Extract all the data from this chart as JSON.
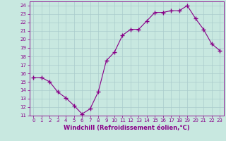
{
  "x": [
    0,
    1,
    2,
    3,
    4,
    5,
    6,
    7,
    8,
    9,
    10,
    11,
    12,
    13,
    14,
    15,
    16,
    17,
    18,
    19,
    20,
    21,
    22,
    23
  ],
  "y": [
    15.5,
    15.5,
    15.0,
    13.8,
    13.1,
    12.2,
    11.2,
    11.8,
    13.8,
    17.5,
    18.5,
    20.5,
    21.2,
    21.2,
    22.2,
    23.2,
    23.2,
    23.4,
    23.4,
    24.0,
    22.5,
    21.2,
    19.5,
    18.7
  ],
  "line_color": "#880088",
  "marker": "+",
  "marker_size": 4,
  "bg_color": "#c8e8e0",
  "grid_color": "#aacccc",
  "xlabel": "Windchill (Refroidissement éolien,°C)",
  "xlim": [
    -0.5,
    23.5
  ],
  "ylim": [
    11,
    24.5
  ],
  "yticks": [
    11,
    12,
    13,
    14,
    15,
    16,
    17,
    18,
    19,
    20,
    21,
    22,
    23,
    24
  ],
  "xticks": [
    0,
    1,
    2,
    3,
    4,
    5,
    6,
    7,
    8,
    9,
    10,
    11,
    12,
    13,
    14,
    15,
    16,
    17,
    18,
    19,
    20,
    21,
    22,
    23
  ],
  "tick_color": "#880088",
  "label_color": "#880088",
  "axis_color": "#880088",
  "tick_fontsize": 5.0,
  "xlabel_fontsize": 6.0,
  "linewidth": 0.8,
  "marker_linewidth": 1.0
}
